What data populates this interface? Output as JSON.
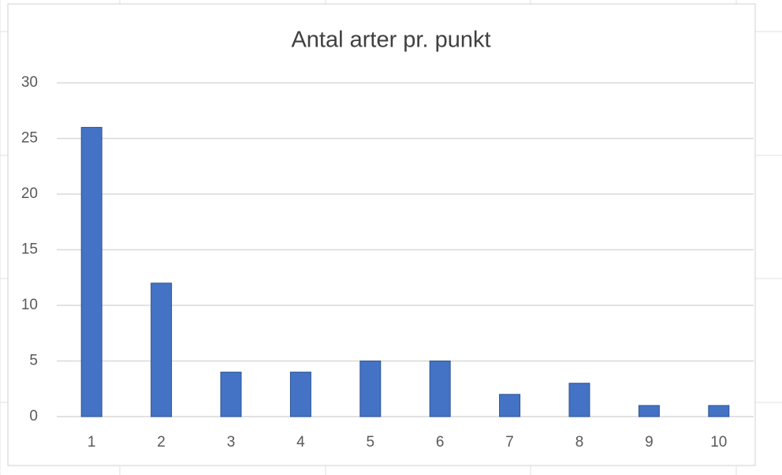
{
  "chart_data": {
    "type": "bar",
    "title": "Antal arter pr. punkt",
    "categories": [
      "1",
      "2",
      "3",
      "4",
      "5",
      "6",
      "7",
      "8",
      "9",
      "10"
    ],
    "values": [
      26,
      12,
      4,
      4,
      5,
      5,
      2,
      3,
      1,
      1
    ],
    "color": "#4472c4",
    "ylim": [
      0,
      30
    ],
    "yticks": [
      0,
      5,
      10,
      15,
      20,
      25,
      30
    ],
    "grid": true
  }
}
